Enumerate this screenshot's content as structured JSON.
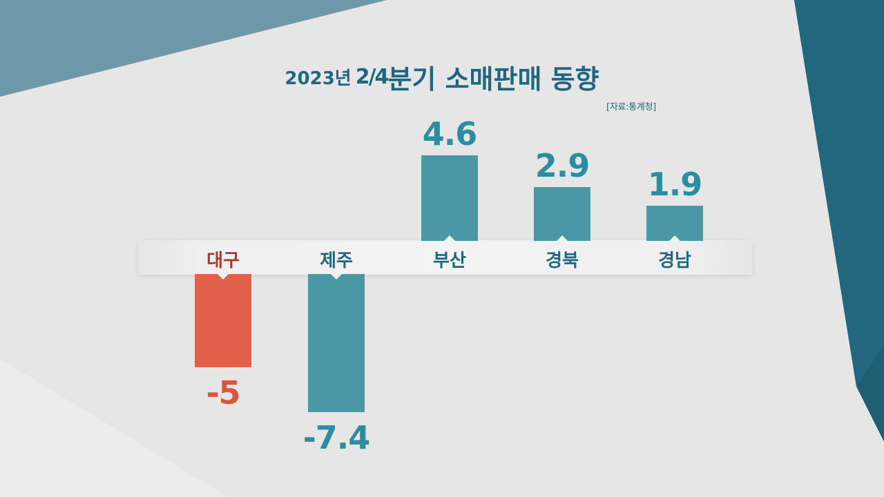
{
  "title": {
    "year": "2023년",
    "fraction": "2/4",
    "rest": "분기 소매판매 동향"
  },
  "source": "[자료:통계청]",
  "colors": {
    "positive": "#4a98a6",
    "negative_highlight": "#e0604a",
    "label_default": "#1f6680",
    "label_highlight": "#a8382b",
    "value_default": "#2a8ea0",
    "value_highlight": "#d9573f"
  },
  "chart_data": {
    "type": "bar",
    "title": "2023년 2/4분기 소매판매 동향",
    "xlabel": "",
    "ylabel": "",
    "categories": [
      "대구",
      "제주",
      "부산",
      "경북",
      "경남"
    ],
    "values": [
      -5,
      -7.4,
      4.6,
      2.9,
      1.9
    ],
    "value_labels": [
      "-5",
      "-7.4",
      "4.6",
      "2.9",
      "1.9"
    ],
    "highlight": [
      "대구"
    ],
    "ylim": [
      -7.4,
      4.6
    ],
    "grid": false,
    "legend": "none"
  }
}
